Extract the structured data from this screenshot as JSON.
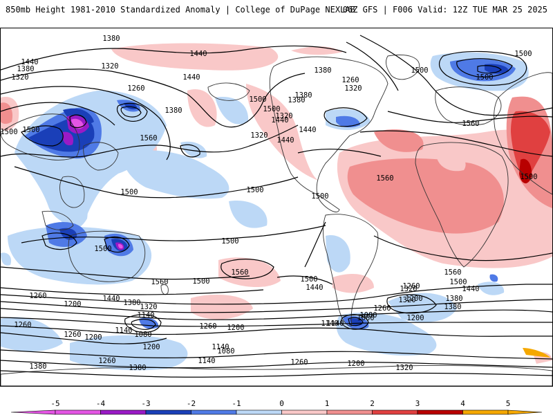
{
  "header": {
    "title": "850mb Height 1981-2010 Standardized Anomaly | College of DuPage NEXLAB",
    "run_info": "06Z GFS | F006 Valid: 12Z TUE MAR 25 2025"
  },
  "colors": {
    "m5": "#e455e4",
    "m4": "#9a1ac6",
    "m3": "#1a3fb8",
    "m2": "#4f7ae6",
    "m1": "#bcd8f6",
    "p1": "#f9c8c8",
    "p2": "#f08f8f",
    "p3": "#e04040",
    "p4": "#b80000",
    "p5": "#f5a800",
    "contour": "#000000",
    "coast": "#333333"
  },
  "colorbar": {
    "ticks": [
      "-5",
      "-4",
      "-3",
      "-2",
      "-1",
      "0",
      "1",
      "2",
      "3",
      "4",
      "5"
    ]
  },
  "contour_labels": [
    {
      "text": "1380"
    },
    {
      "text": "1440"
    },
    {
      "text": "1380"
    },
    {
      "text": "1320"
    },
    {
      "text": "1440"
    },
    {
      "text": "1380"
    },
    {
      "text": "1320"
    },
    {
      "text": "1260"
    },
    {
      "text": "1500"
    },
    {
      "text": "1440"
    },
    {
      "text": "1380"
    },
    {
      "text": "1500"
    },
    {
      "text": "1320"
    },
    {
      "text": "1260"
    },
    {
      "text": "1320"
    },
    {
      "text": "1440"
    },
    {
      "text": "1380"
    },
    {
      "text": "1440"
    },
    {
      "text": "1500"
    },
    {
      "text": "1380"
    },
    {
      "text": "1440"
    },
    {
      "text": "1320"
    },
    {
      "text": "1380"
    },
    {
      "text": "1500"
    },
    {
      "text": "1560"
    },
    {
      "text": "1500"
    },
    {
      "text": "1500"
    },
    {
      "text": "1500"
    },
    {
      "text": "1560"
    },
    {
      "text": "1500"
    },
    {
      "text": "1560"
    },
    {
      "text": "1500"
    },
    {
      "text": "1500"
    },
    {
      "text": "1500"
    },
    {
      "text": "1500"
    },
    {
      "text": "1500"
    },
    {
      "text": "1560"
    },
    {
      "text": "1560"
    },
    {
      "text": "1500"
    },
    {
      "text": "1500"
    },
    {
      "text": "1560"
    },
    {
      "text": "1500"
    },
    {
      "text": "1440"
    },
    {
      "text": "1440"
    },
    {
      "text": "1380"
    },
    {
      "text": "1320"
    },
    {
      "text": "1260"
    },
    {
      "text": "1200"
    },
    {
      "text": "1260"
    },
    {
      "text": "1200"
    },
    {
      "text": "1440"
    },
    {
      "text": "1380"
    },
    {
      "text": "1320"
    },
    {
      "text": "1260"
    },
    {
      "text": "1200"
    },
    {
      "text": "1140"
    },
    {
      "text": "1080"
    },
    {
      "text": "1140"
    },
    {
      "text": "1140"
    },
    {
      "text": "1080"
    },
    {
      "text": "1260"
    },
    {
      "text": "1200"
    },
    {
      "text": "1260"
    },
    {
      "text": "1380"
    },
    {
      "text": "1320"
    },
    {
      "text": "1260"
    },
    {
      "text": "1140"
    },
    {
      "text": "1080"
    },
    {
      "text": "1200"
    },
    {
      "text": "1140"
    },
    {
      "text": "1380"
    },
    {
      "text": "1260"
    },
    {
      "text": "1140"
    },
    {
      "text": "1200"
    },
    {
      "text": "1260"
    },
    {
      "text": "1200"
    },
    {
      "text": "1320"
    },
    {
      "text": "1080"
    },
    {
      "text": "1380"
    }
  ]
}
